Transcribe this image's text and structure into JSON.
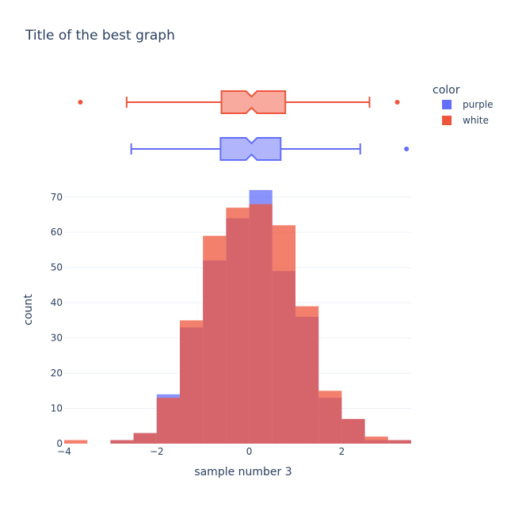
{
  "chart_data": {
    "type": "histogram",
    "title": "Title of the best graph",
    "xlabel": "sample number 3",
    "ylabel": "count",
    "xlim": [
      -4,
      3.5
    ],
    "ylim": [
      0,
      74
    ],
    "x_ticks": [
      "−4",
      "−2",
      "0",
      "2"
    ],
    "y_ticks": [
      "0",
      "10",
      "20",
      "30",
      "40",
      "50",
      "60",
      "70"
    ],
    "bin_width": 0.5,
    "bin_starts": [
      -4,
      -3.5,
      -3,
      -2.5,
      -2,
      -1.5,
      -1,
      -0.5,
      0,
      0.5,
      1,
      1.5,
      2,
      2.5,
      3
    ],
    "legend_title": "color",
    "legend_position": "top-right",
    "series": [
      {
        "name": "purple",
        "color": "#636efa",
        "counts": [
          0,
          0,
          1,
          3,
          14,
          33,
          52,
          64,
          72,
          49,
          36,
          13,
          7,
          1,
          1
        ],
        "box": {
          "lower_fence": -2.55,
          "q1": -0.62,
          "median": 0.05,
          "q3": 0.68,
          "upper_fence": 2.4,
          "outliers": [
            3.4
          ]
        }
      },
      {
        "name": "white",
        "color": "#ef553b",
        "counts": [
          1,
          0,
          1,
          3,
          13,
          35,
          59,
          67,
          68,
          62,
          39,
          15,
          7,
          2,
          1
        ],
        "box": {
          "lower_fence": -2.65,
          "q1": -0.6,
          "median": 0.05,
          "q3": 0.78,
          "upper_fence": 2.6,
          "outliers": [
            -3.65,
            3.2
          ]
        }
      }
    ]
  }
}
